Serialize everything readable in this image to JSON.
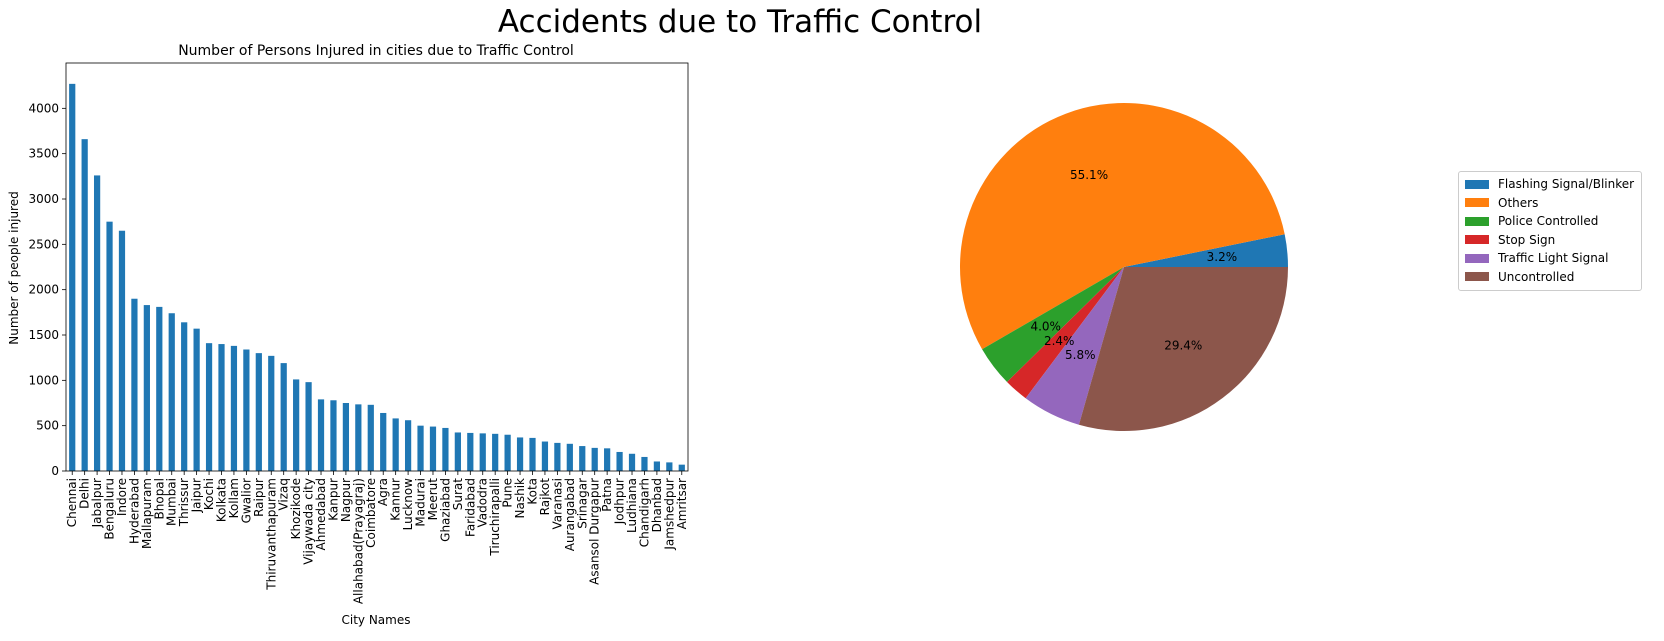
{
  "figure": {
    "title": "Accidents due to Traffic Control"
  },
  "chart_data": [
    {
      "type": "bar",
      "title": "Number of Persons Injured in cities due to Traffic Control",
      "xlabel": "City Names",
      "ylabel": "Number of people injured",
      "ylim": [
        0,
        4500
      ],
      "yticks": [
        0,
        500,
        1000,
        1500,
        2000,
        2500,
        3000,
        3500,
        4000
      ],
      "color": "#1f77b4",
      "categories": [
        "Chennai",
        "Delhi",
        "Jabalpur",
        "Bengaluru",
        "Indore",
        "Hyderabad",
        "Mallapuram",
        "Bhopal",
        "Mumbai",
        "Thrissur",
        "Jaipur",
        "Kochi",
        "Kolkata",
        "Kollam",
        "Gwalior",
        "Raipur",
        "Thiruvanthapuram",
        "Vizaq",
        "Khozikode",
        "Vijaywada city",
        "Ahmedabad",
        "Kanpur",
        "Nagpur",
        "Allahabad(Prayagraj)",
        "Coimbatore",
        "Agra",
        "Kannur",
        "Lucknow",
        "Madurai",
        "Meerut",
        "Ghaziabad",
        "Surat",
        "Faridabad",
        "Vadodra",
        "Tiruchirapalli",
        "Pune",
        "Nashik",
        "Kota",
        "Rajkot",
        "Varanasi",
        "Aurangabad",
        "Srinagar",
        "Asansol Durgapur",
        "Patna",
        "Jodhpur",
        "Ludhiana",
        "Chandigarh",
        "Dhanbad",
        "Jamshedpur",
        "Amritsar"
      ],
      "values": [
        4270,
        3660,
        3260,
        2750,
        2650,
        1900,
        1830,
        1810,
        1740,
        1640,
        1570,
        1410,
        1400,
        1380,
        1340,
        1300,
        1270,
        1190,
        1010,
        980,
        790,
        780,
        750,
        735,
        730,
        640,
        580,
        560,
        500,
        490,
        475,
        425,
        420,
        415,
        410,
        400,
        370,
        365,
        325,
        310,
        300,
        275,
        255,
        250,
        210,
        190,
        155,
        105,
        95,
        70
      ]
    },
    {
      "type": "pie",
      "labels": [
        "Flashing Signal/Blinker",
        "Others",
        "Police Controlled",
        "Stop Sign",
        "Traffic Light Signal",
        "Uncontrolled"
      ],
      "values": [
        3.2,
        55.1,
        4.0,
        2.4,
        5.8,
        29.4
      ],
      "autopct": [
        "3.2%",
        "55.1%",
        "4.0%",
        "2.4%",
        "5.8%",
        "29.4%"
      ],
      "colors": [
        "#1f77b4",
        "#ff7f0e",
        "#2ca02c",
        "#d62728",
        "#9467bd",
        "#8c564b"
      ],
      "startangle": 0,
      "legend": "right"
    }
  ]
}
